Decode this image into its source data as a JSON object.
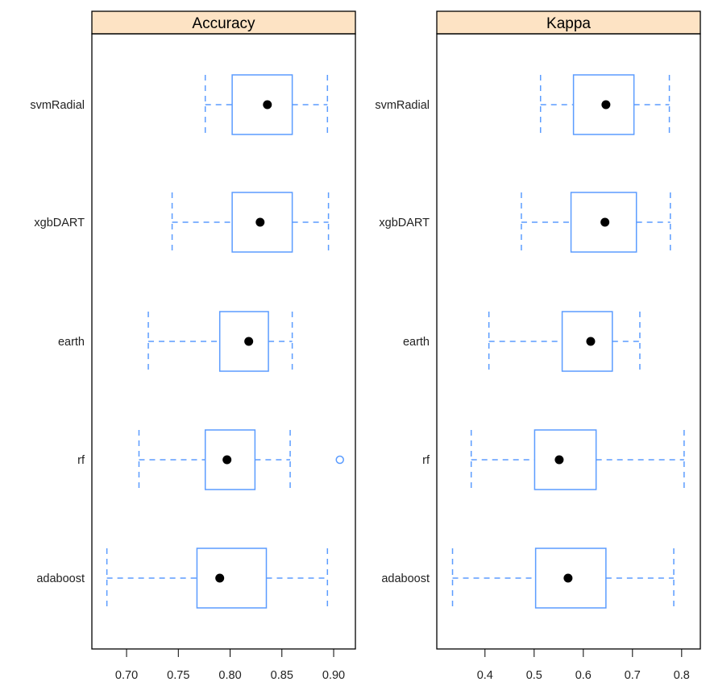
{
  "chart_data": {
    "type": "boxplot",
    "categories": [
      "svmRadial",
      "xgbDART",
      "earth",
      "rf",
      "adaboost"
    ],
    "colors": {
      "box": "#5b9cff",
      "median": "#000000",
      "strip": "#fde3c4"
    },
    "panels": [
      {
        "title": "Accuracy",
        "xlim": [
          0.6665,
          0.921
        ],
        "ticks": [
          0.7,
          0.75,
          0.8,
          0.85,
          0.9
        ],
        "tick_labels": [
          "0.70",
          "0.75",
          "0.80",
          "0.85",
          "0.90"
        ],
        "boxes": [
          {
            "name": "svmRadial",
            "min": 0.776,
            "q1": 0.802,
            "median": 0.836,
            "q3": 0.86,
            "max": 0.894,
            "outliers": []
          },
          {
            "name": "xgbDART",
            "min": 0.744,
            "q1": 0.802,
            "median": 0.829,
            "q3": 0.86,
            "max": 0.895,
            "outliers": []
          },
          {
            "name": "earth",
            "min": 0.721,
            "q1": 0.79,
            "median": 0.818,
            "q3": 0.837,
            "max": 0.86,
            "outliers": []
          },
          {
            "name": "rf",
            "min": 0.712,
            "q1": 0.776,
            "median": 0.797,
            "q3": 0.824,
            "max": 0.858,
            "outliers": [
              0.906
            ]
          },
          {
            "name": "adaboost",
            "min": 0.681,
            "q1": 0.768,
            "median": 0.79,
            "q3": 0.835,
            "max": 0.894,
            "outliers": []
          }
        ]
      },
      {
        "title": "Kappa",
        "xlim": [
          0.302,
          0.838
        ],
        "ticks": [
          0.4,
          0.5,
          0.6,
          0.7,
          0.8
        ],
        "tick_labels": [
          "0.4",
          "0.5",
          "0.6",
          "0.7",
          "0.8"
        ],
        "boxes": [
          {
            "name": "svmRadial",
            "min": 0.513,
            "q1": 0.58,
            "median": 0.646,
            "q3": 0.703,
            "max": 0.775,
            "outliers": []
          },
          {
            "name": "xgbDART",
            "min": 0.474,
            "q1": 0.575,
            "median": 0.644,
            "q3": 0.708,
            "max": 0.777,
            "outliers": []
          },
          {
            "name": "earth",
            "min": 0.408,
            "q1": 0.557,
            "median": 0.615,
            "q3": 0.659,
            "max": 0.715,
            "outliers": []
          },
          {
            "name": "rf",
            "min": 0.372,
            "q1": 0.501,
            "median": 0.551,
            "q3": 0.626,
            "max": 0.805,
            "outliers": []
          },
          {
            "name": "adaboost",
            "min": 0.334,
            "q1": 0.503,
            "median": 0.569,
            "q3": 0.646,
            "max": 0.784,
            "outliers": []
          }
        ]
      }
    ]
  }
}
